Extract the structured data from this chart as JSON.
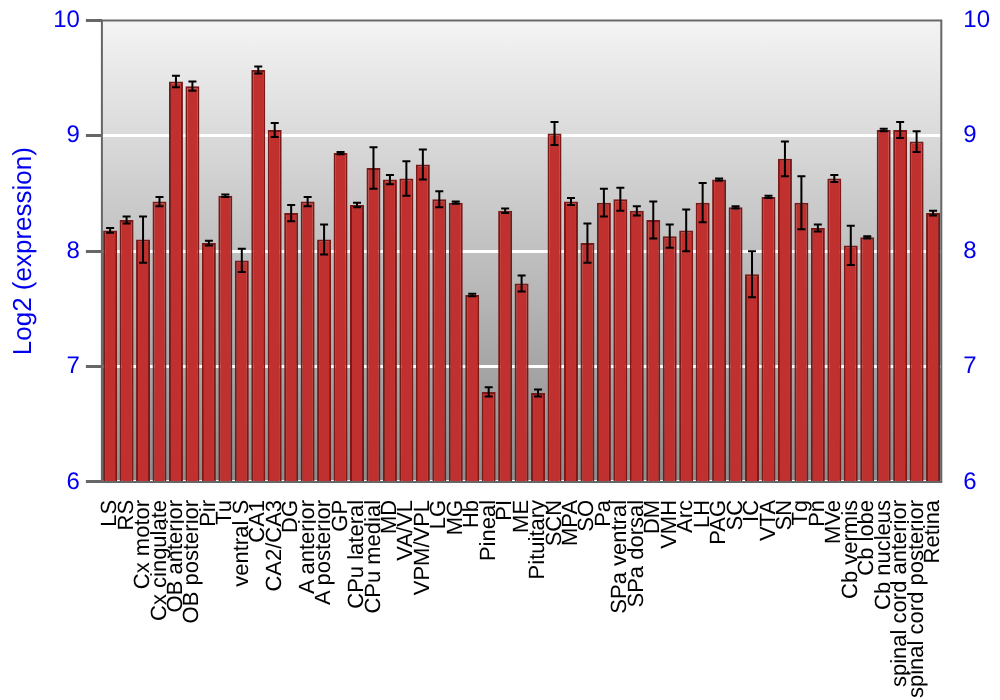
{
  "chart_data": {
    "type": "bar",
    "ylabel": "Log2 (expression)",
    "categories": [
      "LS",
      "RS",
      "Cx motor",
      "Cx cingulate",
      "OB anterior",
      "OB posterior",
      "Pir",
      "Tu",
      "ventral S",
      "CA1",
      "CA2/CA3",
      "DG",
      "A anterior",
      "A posterior",
      "GP",
      "CPu lateral",
      "CPu medial",
      "MD",
      "VA/VL",
      "VPM/VPL",
      "LG",
      "MG",
      "Hb",
      "Pineal",
      "PI",
      "ME",
      "Pituitary",
      "SCN",
      "MPA",
      "SO",
      "Pa",
      "SPa ventral",
      "SPa dorsal",
      "DM",
      "VMH",
      "Arc",
      "LH",
      "PAG",
      "SC",
      "IC",
      "VTA",
      "SN",
      "Tg",
      "Pn",
      "MVe",
      "Cb vermis",
      "Cb lobe",
      "Cb nucleus",
      "spinal cord anterior",
      "spinal cord posterior",
      "Retina"
    ],
    "values": [
      8.18,
      8.27,
      8.1,
      8.43,
      9.47,
      9.43,
      8.07,
      8.48,
      7.92,
      9.57,
      9.05,
      8.33,
      8.43,
      8.1,
      8.85,
      8.4,
      8.72,
      8.62,
      8.63,
      8.75,
      8.45,
      8.42,
      7.62,
      6.78,
      8.35,
      7.72,
      6.77,
      9.02,
      8.43,
      8.07,
      8.42,
      8.45,
      8.35,
      8.27,
      8.13,
      8.18,
      8.42,
      8.62,
      8.38,
      7.8,
      8.47,
      8.8,
      8.42,
      8.2,
      8.63,
      8.05,
      8.12,
      9.05,
      9.05,
      8.95,
      8.33
    ],
    "errors": [
      0.02,
      0.03,
      0.2,
      0.04,
      0.05,
      0.04,
      0.02,
      0.01,
      0.1,
      0.03,
      0.06,
      0.07,
      0.04,
      0.13,
      0.01,
      0.02,
      0.18,
      0.04,
      0.15,
      0.13,
      0.07,
      0.01,
      0.01,
      0.04,
      0.02,
      0.07,
      0.03,
      0.1,
      0.03,
      0.17,
      0.12,
      0.1,
      0.04,
      0.16,
      0.1,
      0.18,
      0.17,
      0.01,
      0.01,
      0.2,
      0.01,
      0.15,
      0.23,
      0.03,
      0.03,
      0.17,
      0.01,
      0.01,
      0.07,
      0.09,
      0.02
    ],
    "color": "#c0302e",
    "ylim": [
      6,
      10
    ],
    "yticks": [
      6,
      7,
      8,
      9,
      10
    ],
    "y2lim": [
      6,
      10
    ],
    "y2ticks": [
      6,
      7,
      8,
      9,
      10
    ],
    "grid": "y"
  }
}
